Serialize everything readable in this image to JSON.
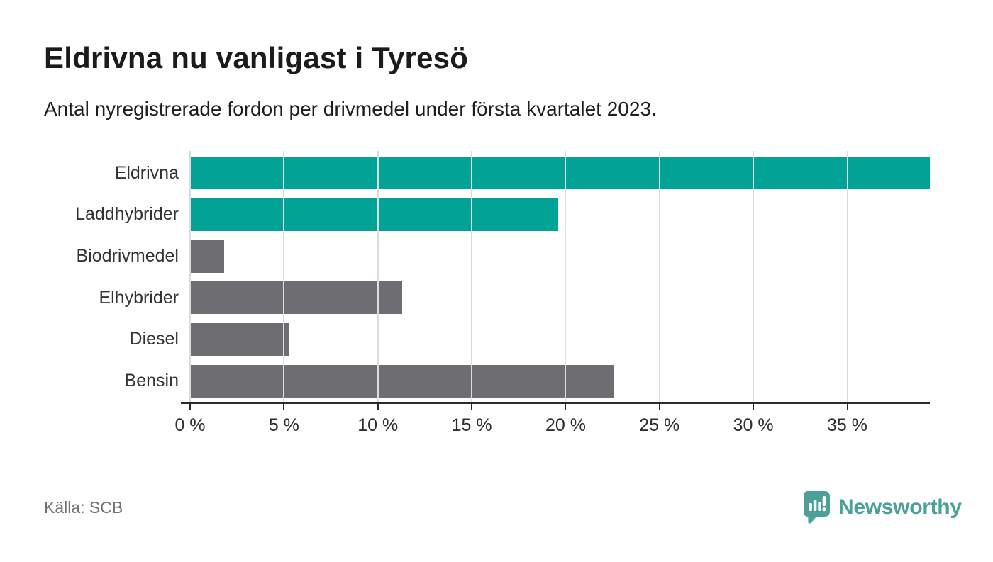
{
  "header": {
    "title": "Eldrivna nu vanligast i Tyresö",
    "subtitle": "Antal nyregistrerade fordon per drivmedel under första kvartalet 2023."
  },
  "footer": {
    "source": "Källa: SCB",
    "brand": "Newsworthy"
  },
  "colors": {
    "highlight_bar": "#00a396",
    "default_bar": "#6d6d72",
    "gridline": "#dcdcdc",
    "axis": "#2b2b2b",
    "brand_teal": "#4ba19a"
  },
  "icons": {
    "logo_icon": "newsworthy-speech-bubble-chart-icon"
  },
  "chart_data": {
    "type": "bar",
    "orientation": "horizontal",
    "title": "Eldrivna nu vanligast i Tyresö",
    "subtitle": "Antal nyregistrerade fordon per drivmedel under första kvartalet 2023.",
    "categories": [
      "Eldrivna",
      "Laddhybrider",
      "Biodrivmedel",
      "Elhybrider",
      "Diesel",
      "Bensin"
    ],
    "values": [
      39.4,
      19.6,
      1.8,
      11.3,
      5.3,
      22.6
    ],
    "unit": "%",
    "bar_colors": [
      "#00a396",
      "#00a396",
      "#6d6d72",
      "#6d6d72",
      "#6d6d72",
      "#6d6d72"
    ],
    "xlim": [
      0,
      39.4
    ],
    "x_ticks": [
      0,
      5,
      10,
      15,
      20,
      25,
      30,
      35
    ],
    "x_tick_labels": [
      "0 %",
      "5 %",
      "10 %",
      "15 %",
      "20 %",
      "25 %",
      "30 %",
      "35 %"
    ],
    "grid": "vertical-over-bars",
    "legend": "none",
    "source": "Källa: SCB"
  }
}
